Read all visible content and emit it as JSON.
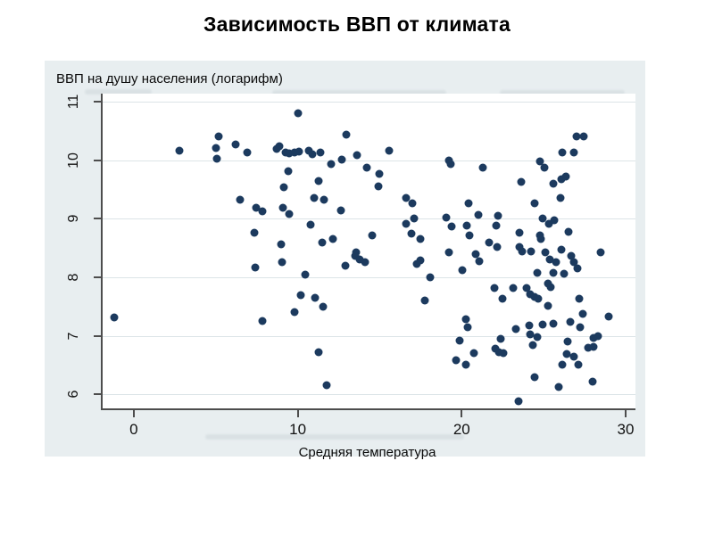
{
  "title": "Зависимость ВВП от климата",
  "colors": {
    "panel_bg": "#e8eef0",
    "plot_bg": "#ffffff",
    "grid": "#dce4e7",
    "axis": "#4d4d4d",
    "marker": "#1c3a5e",
    "text": "#000000"
  },
  "chart_data": {
    "type": "scatter",
    "title": "Зависимость ВВП от климата",
    "xlabel": "Средняя температура",
    "ylabel": "ВВП на душу населения (логарифм)",
    "x_ticks": [
      0,
      10,
      20,
      30
    ],
    "y_ticks": [
      6,
      7,
      8,
      9,
      10,
      11
    ],
    "xlim": [
      -1.9,
      30.6
    ],
    "ylim": [
      5.76,
      11.14
    ],
    "grid": "horizontal",
    "legend": null,
    "points": [
      [
        -1.2,
        7.32
      ],
      [
        2.8,
        10.16
      ],
      [
        5.2,
        10.41
      ],
      [
        5.0,
        10.21
      ],
      [
        5.05,
        10.03
      ],
      [
        6.2,
        10.27
      ],
      [
        6.9,
        10.13
      ],
      [
        8.7,
        10.19
      ],
      [
        8.9,
        10.24
      ],
      [
        9.25,
        10.14
      ],
      [
        9.5,
        10.12
      ],
      [
        9.8,
        10.14
      ],
      [
        10.05,
        10.15
      ],
      [
        10.7,
        10.17
      ],
      [
        10.9,
        10.11
      ],
      [
        11.4,
        10.13
      ],
      [
        10.0,
        10.8
      ],
      [
        9.4,
        9.82
      ],
      [
        9.15,
        9.54
      ],
      [
        6.5,
        9.32
      ],
      [
        7.45,
        9.19
      ],
      [
        7.85,
        9.13
      ],
      [
        9.1,
        9.19
      ],
      [
        9.5,
        9.08
      ],
      [
        7.35,
        8.77
      ],
      [
        9.0,
        8.57
      ],
      [
        12.95,
        10.44
      ],
      [
        15.6,
        10.17
      ],
      [
        12.7,
        10.01
      ],
      [
        13.6,
        10.09
      ],
      [
        12.05,
        9.93
      ],
      [
        14.2,
        9.88
      ],
      [
        15.0,
        9.77
      ],
      [
        19.2,
        10.0
      ],
      [
        19.35,
        9.94
      ],
      [
        21.3,
        9.88
      ],
      [
        11.3,
        9.65
      ],
      [
        14.9,
        9.56
      ],
      [
        11.0,
        9.36
      ],
      [
        11.6,
        9.33
      ],
      [
        16.6,
        9.35
      ],
      [
        17.0,
        9.27
      ],
      [
        12.65,
        9.14
      ],
      [
        20.4,
        9.27
      ],
      [
        17.1,
        9.0
      ],
      [
        19.05,
        9.02
      ],
      [
        10.8,
        8.9
      ],
      [
        16.6,
        8.92
      ],
      [
        19.4,
        8.87
      ],
      [
        20.3,
        8.89
      ],
      [
        21.0,
        9.06
      ],
      [
        14.55,
        8.72
      ],
      [
        16.95,
        8.74
      ],
      [
        17.5,
        8.66
      ],
      [
        11.5,
        8.59
      ],
      [
        12.15,
        8.66
      ],
      [
        20.45,
        8.72
      ],
      [
        21.65,
        8.59
      ],
      [
        19.2,
        8.42
      ],
      [
        13.55,
        8.42
      ],
      [
        20.85,
        8.4
      ],
      [
        21.1,
        8.28
      ],
      [
        27.0,
        10.41
      ],
      [
        27.45,
        10.41
      ],
      [
        26.15,
        10.13
      ],
      [
        26.85,
        10.13
      ],
      [
        24.8,
        9.98
      ],
      [
        25.05,
        9.87
      ],
      [
        25.6,
        9.6
      ],
      [
        26.1,
        9.68
      ],
      [
        26.35,
        9.72
      ],
      [
        23.65,
        9.63
      ],
      [
        24.45,
        9.27
      ],
      [
        26.05,
        9.35
      ],
      [
        22.2,
        9.05
      ],
      [
        22.1,
        8.88
      ],
      [
        24.95,
        9.0
      ],
      [
        25.3,
        8.92
      ],
      [
        25.65,
        8.98
      ],
      [
        23.5,
        8.77
      ],
      [
        24.75,
        8.72
      ],
      [
        24.85,
        8.65
      ],
      [
        26.5,
        8.78
      ],
      [
        22.15,
        8.52
      ],
      [
        23.55,
        8.52
      ],
      [
        23.7,
        8.44
      ],
      [
        24.25,
        8.44
      ],
      [
        26.1,
        8.47
      ],
      [
        28.5,
        8.43
      ],
      [
        25.1,
        8.43
      ],
      [
        7.4,
        8.17
      ],
      [
        9.05,
        8.26
      ],
      [
        7.85,
        7.25
      ],
      [
        9.8,
        7.41
      ],
      [
        12.9,
        8.2
      ],
      [
        13.5,
        8.37
      ],
      [
        13.8,
        8.31
      ],
      [
        14.1,
        8.26
      ],
      [
        10.45,
        8.05
      ],
      [
        17.25,
        8.23
      ],
      [
        17.5,
        8.29
      ],
      [
        20.05,
        8.12
      ],
      [
        18.1,
        8.0
      ],
      [
        10.2,
        7.7
      ],
      [
        11.05,
        7.65
      ],
      [
        11.55,
        7.5
      ],
      [
        17.75,
        7.6
      ],
      [
        20.25,
        7.29
      ],
      [
        20.35,
        7.15
      ],
      [
        19.85,
        6.92
      ],
      [
        11.25,
        6.72
      ],
      [
        20.75,
        6.7
      ],
      [
        19.65,
        6.58
      ],
      [
        20.25,
        6.5
      ],
      [
        11.75,
        6.16
      ],
      [
        25.4,
        8.3
      ],
      [
        25.75,
        8.26
      ],
      [
        26.7,
        8.36
      ],
      [
        26.85,
        8.26
      ],
      [
        27.05,
        8.16
      ],
      [
        24.6,
        8.08
      ],
      [
        25.6,
        8.07
      ],
      [
        26.25,
        8.06
      ],
      [
        22.0,
        7.82
      ],
      [
        23.15,
        7.81
      ],
      [
        23.95,
        7.82
      ],
      [
        25.25,
        7.89
      ],
      [
        25.45,
        7.83
      ],
      [
        22.5,
        7.63
      ],
      [
        24.15,
        7.71
      ],
      [
        24.45,
        7.67
      ],
      [
        24.65,
        7.64
      ],
      [
        27.15,
        7.63
      ],
      [
        25.25,
        7.52
      ],
      [
        27.4,
        7.38
      ],
      [
        28.95,
        7.33
      ],
      [
        24.95,
        7.2
      ],
      [
        25.6,
        7.21
      ],
      [
        26.6,
        7.24
      ],
      [
        23.3,
        7.12
      ],
      [
        24.1,
        7.17
      ],
      [
        27.25,
        7.15
      ],
      [
        22.4,
        6.95
      ],
      [
        24.2,
        7.02
      ],
      [
        24.6,
        6.98
      ],
      [
        24.35,
        6.84
      ],
      [
        26.45,
        6.9
      ],
      [
        28.05,
        6.97
      ],
      [
        28.3,
        7.0
      ],
      [
        27.7,
        6.8
      ],
      [
        28.05,
        6.81
      ],
      [
        22.05,
        6.78
      ],
      [
        22.25,
        6.72
      ],
      [
        22.55,
        6.7
      ],
      [
        26.4,
        6.69
      ],
      [
        26.85,
        6.64
      ],
      [
        27.1,
        6.51
      ],
      [
        26.15,
        6.51
      ],
      [
        24.45,
        6.3
      ],
      [
        25.9,
        6.13
      ],
      [
        28.0,
        6.22
      ],
      [
        23.45,
        5.88
      ]
    ]
  }
}
